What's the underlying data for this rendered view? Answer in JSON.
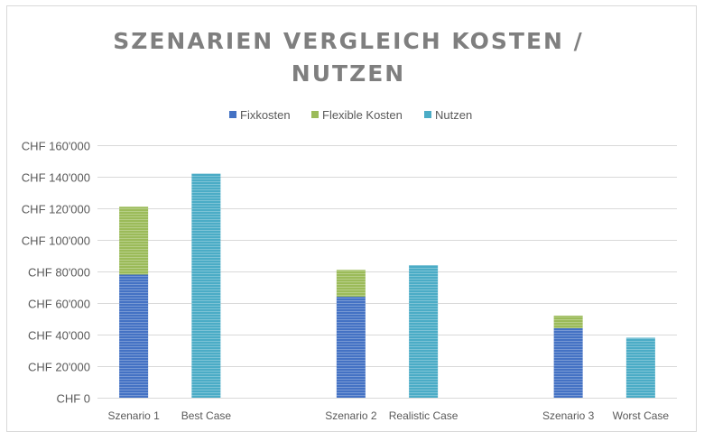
{
  "chart_data": {
    "type": "bar",
    "stacked": true,
    "title": "SZENARIEN VERGLEICH KOSTEN / NUTZEN",
    "title_lines": [
      "SZENARIEN VERGLEICH KOSTEN /",
      "NUTZEN"
    ],
    "legend_position": "top",
    "categories": [
      "Szenario 1",
      "Best Case",
      "",
      "Szenario 2",
      "Realistic Case",
      "",
      "Szenario 3",
      "Worst Case"
    ],
    "series": [
      {
        "name": "Fixkosten",
        "color": "#4472c4",
        "values": [
          78000,
          null,
          null,
          64000,
          null,
          null,
          44000,
          null
        ]
      },
      {
        "name": "Flexible Kosten",
        "color": "#9bbb59",
        "values": [
          43000,
          null,
          null,
          17000,
          null,
          null,
          8000,
          null
        ]
      },
      {
        "name": "Nutzen",
        "color": "#4bacc6",
        "values": [
          null,
          142000,
          null,
          null,
          84000,
          null,
          null,
          38000
        ]
      }
    ],
    "yticks": [
      0,
      20000,
      40000,
      60000,
      80000,
      100000,
      120000,
      140000,
      160000
    ],
    "ytick_labels": [
      "CHF 0",
      "CHF 20'000",
      "CHF 40'000",
      "CHF 60'000",
      "CHF 80'000",
      "CHF 100'000",
      "CHF 120'000",
      "CHF 140'000",
      "CHF 160'000"
    ],
    "ylim": [
      0,
      160000
    ],
    "xlabel": "",
    "ylabel": "",
    "grid": true
  }
}
